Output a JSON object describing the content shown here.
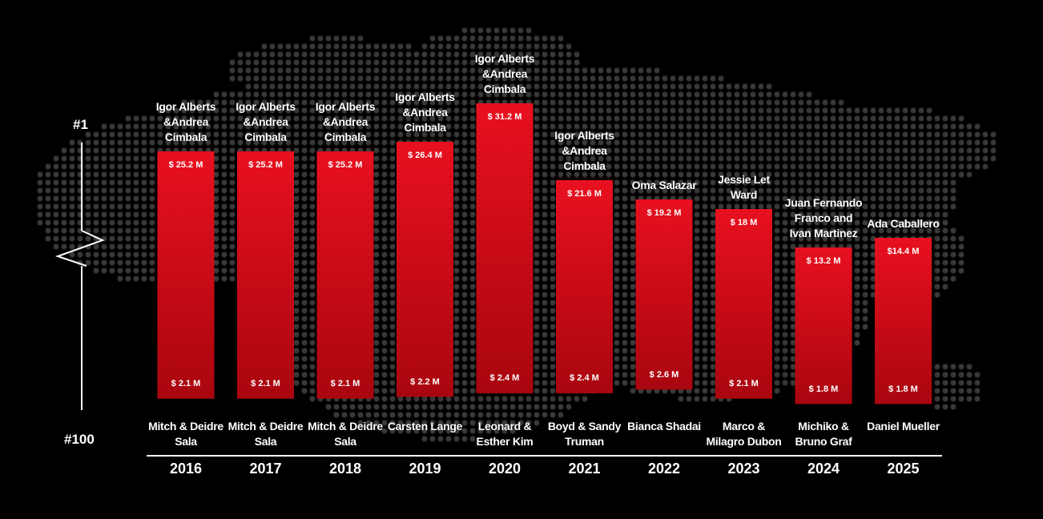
{
  "rank_scale": {
    "top_label": "#1",
    "bottom_label": "#100"
  },
  "colors": {
    "bar_top": "#e8101f",
    "bar_bottom": "#a9060f",
    "background": "#000000",
    "map_dots": "#3a3a3a",
    "text": "#ffffff"
  },
  "chart_data": {
    "type": "bar",
    "categories": [
      "2016",
      "2017",
      "2018",
      "2019",
      "2020",
      "2021",
      "2022",
      "2023",
      "2024",
      "2025"
    ],
    "ylim": [
      0,
      100
    ],
    "series": [
      {
        "name": "top",
        "values": [
          25.2,
          25.2,
          25.2,
          26.4,
          31.2,
          21.6,
          19.2,
          18,
          13.2,
          14.4
        ],
        "labels": [
          "$ 25.2 M",
          "$ 25.2 M",
          "$ 25.2 M",
          "$ 26.4 M",
          "$ 31.2 M",
          "$ 21.6 M",
          "$ 19.2 M",
          "$ 18 M",
          "$ 13.2 M",
          "$14.4 M"
        ],
        "names": [
          "Igor Alberts &Andrea Cimbala",
          "Igor Alberts &Andrea Cimbala",
          "Igor Alberts &Andrea Cimbala",
          "Igor Alberts &Andrea Cimbala",
          "Igor Alberts &Andrea Cimbala",
          "Igor Alberts &Andrea Cimbala",
          "Oma Salazar",
          "Jessie Let Ward",
          "Juan Fernando Franco and Ivan Martinez",
          "Ada Caballero"
        ]
      },
      {
        "name": "bottom",
        "values": [
          2.1,
          2.1,
          2.1,
          2.2,
          2.4,
          2.4,
          2.6,
          2.1,
          1.8,
          1.8
        ],
        "labels": [
          "$ 2.1 M",
          "$ 2.1 M",
          "$ 2.1 M",
          "$ 2.2 M",
          "$ 2.4 M",
          "$ 2.4 M",
          "$ 2.6 M",
          "$ 2.1 M",
          "$ 1.8 M",
          "$ 1.8 M"
        ],
        "names": [
          "Mitch & Deidre Sala",
          "Mitch & Deidre Sala",
          "Mitch & Deidre Sala",
          "Carsten Lange",
          "Leonard & Esther Kim",
          "Boyd & Sandy Truman",
          "Bianca Shadai",
          "Marco & Milagro Dubon",
          "Michiko & Bruno Graf",
          "Daniel Mueller"
        ]
      }
    ]
  }
}
